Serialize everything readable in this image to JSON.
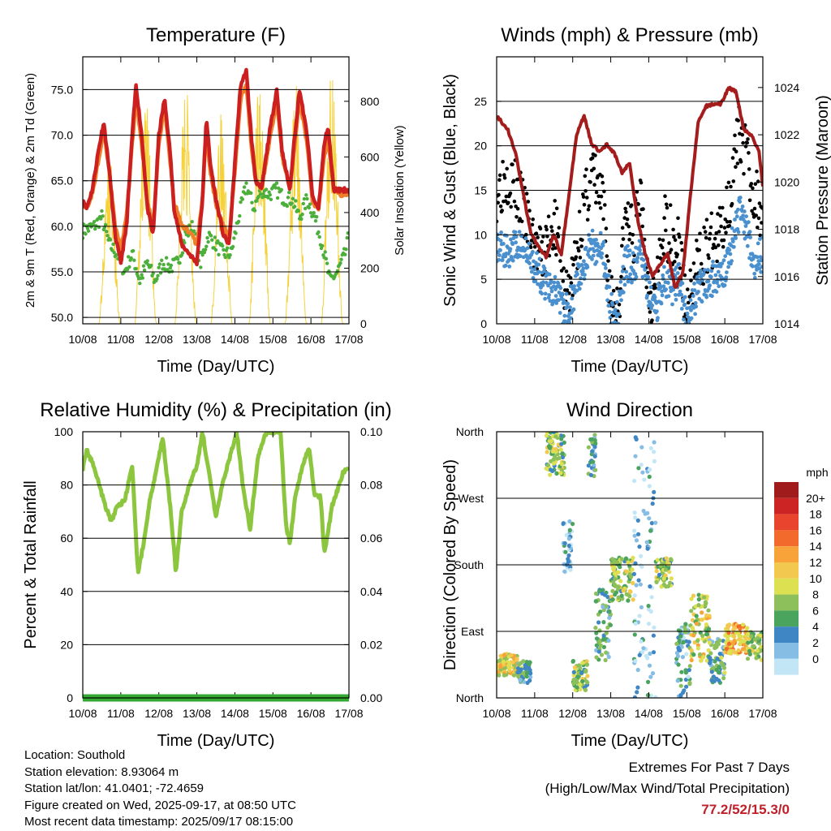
{
  "chart_data": [
    {
      "type": "line",
      "title": "Temperature (F)",
      "xlabel": "Time (Day/UTC)",
      "ylabel": "2m & 9m T (Red, Orange) & 2m Td (Green)",
      "ylabel_right": "Solar Insolation (Yellow)",
      "x_ticks": [
        "10/08",
        "11/08",
        "12/08",
        "13/08",
        "14/08",
        "15/08",
        "16/08",
        "17/08"
      ],
      "y_ticks": [
        "50.0",
        "55.0",
        "60.0",
        "65.0",
        "70.0",
        "75.0"
      ],
      "y_ticks_right": [
        "0",
        "200",
        "400",
        "600",
        "800"
      ],
      "ylim": [
        49.3,
        78.6
      ],
      "ylim_right": [
        0,
        960
      ],
      "grid": true,
      "series": [
        {
          "name": "2m T",
          "color": "#cc1f1f",
          "axis": "left",
          "x": [
            0,
            0.1,
            0.25,
            0.4,
            0.55,
            0.7,
            0.85,
            1.0,
            1.15,
            1.3,
            1.4,
            1.55,
            1.7,
            1.85,
            2.0,
            2.15,
            2.3,
            2.4,
            2.5,
            2.6,
            2.8,
            3.0,
            3.15,
            3.25,
            3.35,
            3.5,
            3.7,
            3.85,
            4.0,
            4.15,
            4.3,
            4.45,
            4.55,
            4.7,
            4.9,
            5.1,
            5.25,
            5.45,
            5.55,
            5.7,
            5.9,
            6.05,
            6.2,
            6.35,
            6.45,
            6.6,
            6.8,
            7.0
          ],
          "y": [
            63,
            62,
            64,
            68,
            71.5,
            66,
            59,
            56,
            60,
            70,
            75.5,
            70,
            62,
            59,
            70,
            74,
            68,
            62,
            60,
            58,
            57,
            56,
            63,
            72,
            67,
            63,
            59,
            58,
            67,
            75.5,
            77,
            69,
            65,
            64,
            70,
            75,
            68,
            64,
            69,
            75,
            70,
            63,
            62,
            69,
            71,
            64,
            64,
            64
          ]
        },
        {
          "name": "9m T",
          "color": "#f07f2a",
          "axis": "left",
          "x": [
            0,
            0.1,
            0.25,
            0.4,
            0.55,
            0.7,
            0.85,
            1.0,
            1.15,
            1.3,
            1.4,
            1.55,
            1.7,
            1.85,
            2.0,
            2.15,
            2.3,
            2.4,
            2.5,
            2.6,
            2.8,
            3.0,
            3.15,
            3.25,
            3.35,
            3.5,
            3.7,
            3.85,
            4.0,
            4.15,
            4.3,
            4.45,
            4.55,
            4.7,
            4.9,
            5.1,
            5.25,
            5.45,
            5.55,
            5.7,
            5.9,
            6.05,
            6.2,
            6.35,
            6.45,
            6.6,
            6.8,
            7.0
          ],
          "y": [
            62.5,
            62,
            63.5,
            67,
            70.5,
            66,
            60,
            57.5,
            61,
            69,
            74,
            69,
            62.5,
            60,
            69,
            73,
            67,
            62.5,
            61.5,
            60,
            59.5,
            58,
            63,
            70.5,
            66,
            62.5,
            60,
            59,
            66,
            74,
            75.5,
            68,
            65,
            64,
            69,
            74,
            67.5,
            64,
            68,
            74,
            69,
            62.5,
            62,
            67.5,
            69.5,
            64,
            63.5,
            63.5
          ]
        },
        {
          "name": "2m Td",
          "color": "#4caf3b",
          "axis": "left",
          "x": [
            0,
            0.3,
            0.5,
            0.7,
            0.9,
            1.1,
            1.3,
            1.5,
            1.7,
            1.9,
            2.1,
            2.3,
            2.5,
            2.7,
            2.9,
            3.1,
            3.3,
            3.5,
            3.7,
            3.9,
            4.1,
            4.3,
            4.5,
            4.7,
            4.9,
            5.1,
            5.3,
            5.5,
            5.7,
            5.9,
            6.1,
            6.3,
            6.5,
            6.7,
            6.9,
            7.0
          ],
          "y": [
            59.5,
            60,
            61,
            58,
            57,
            55,
            57,
            54,
            56,
            54,
            56,
            55.5,
            56,
            59,
            60,
            56,
            59,
            58,
            57,
            57,
            61,
            64.5,
            62,
            64,
            63.5,
            64,
            63,
            63,
            61,
            63,
            61,
            58,
            54,
            55,
            57,
            59
          ]
        },
        {
          "name": "Solar Insolation",
          "color": "#f5d23c",
          "axis": "right",
          "peaks_day": [
            0.7,
            1.65,
            2.7,
            3.65,
            4.65,
            5.6,
            6.55
          ],
          "peaks_wm2": [
            640,
            850,
            880,
            780,
            900,
            880,
            950
          ]
        }
      ]
    },
    {
      "type": "scatter",
      "title": "Winds (mph) & Pressure (mb)",
      "xlabel": "Time (Day/UTC)",
      "ylabel": "Sonic Wind & Gust (Blue, Black)",
      "ylabel_right": "Station Pressure (Maroon)",
      "x_ticks": [
        "10/08",
        "11/08",
        "12/08",
        "13/08",
        "14/08",
        "15/08",
        "16/08",
        "17/08"
      ],
      "y_ticks": [
        "0",
        "5",
        "10",
        "15",
        "20",
        "25"
      ],
      "y_ticks_right": [
        "1014",
        "1016",
        "1018",
        "1020",
        "1022",
        "1024"
      ],
      "ylim": [
        0,
        30
      ],
      "ylim_right": [
        1014,
        1025.3
      ],
      "grid": true,
      "series": [
        {
          "name": "Sonic Wind",
          "color": "#4a90cf",
          "axis": "left",
          "x": [
            0,
            0.3,
            0.6,
            0.9,
            1.2,
            1.5,
            1.8,
            2.0,
            2.2,
            2.5,
            2.8,
            3.0,
            3.2,
            3.4,
            3.6,
            3.8,
            4.0,
            4.2,
            4.4,
            4.6,
            4.8,
            5.0,
            5.3,
            5.6,
            5.8,
            6.0,
            6.2,
            6.4,
            6.6,
            6.8,
            7.0
          ],
          "y": [
            9,
            8,
            9,
            7,
            5,
            4,
            1,
            3,
            6,
            9,
            8,
            2,
            1,
            7,
            6,
            8,
            3,
            2,
            5,
            4,
            5,
            0.5,
            4,
            5,
            5,
            6,
            9,
            13,
            10,
            7,
            8
          ]
        },
        {
          "name": "Gust",
          "color": "#000000",
          "axis": "left",
          "x": [
            0,
            0.3,
            0.6,
            0.9,
            1.2,
            1.5,
            1.8,
            2.0,
            2.2,
            2.5,
            2.8,
            3.0,
            3.2,
            3.4,
            3.6,
            3.8,
            4.0,
            4.2,
            4.4,
            4.6,
            4.8,
            5.0,
            5.3,
            5.6,
            5.8,
            6.0,
            6.2,
            6.4,
            6.6,
            6.8,
            7.0
          ],
          "y": [
            15,
            17,
            14,
            10,
            7,
            12,
            3,
            5,
            11,
            17,
            13,
            3,
            2,
            12,
            10,
            15,
            4,
            3,
            11,
            10,
            9,
            1,
            7,
            9,
            9,
            12,
            16,
            22,
            18,
            14,
            13
          ]
        },
        {
          "name": "Station Pressure",
          "color": "#a51c1c",
          "axis": "right",
          "x": [
            0,
            0.3,
            0.5,
            0.7,
            0.9,
            1.1,
            1.3,
            1.5,
            1.7,
            1.9,
            2.1,
            2.3,
            2.5,
            2.7,
            2.9,
            3.1,
            3.3,
            3.5,
            3.7,
            3.9,
            4.1,
            4.3,
            4.5,
            4.7,
            4.9,
            5.1,
            5.3,
            5.5,
            5.7,
            5.9,
            6.1,
            6.3,
            6.5,
            6.7,
            6.9,
            7.0
          ],
          "y": [
            1022.8,
            1022.2,
            1021.2,
            1019.5,
            1017.8,
            1017.3,
            1016.8,
            1017.8,
            1016.9,
            1019.4,
            1022,
            1022.8,
            1021.6,
            1021.3,
            1021.6,
            1021.2,
            1020.4,
            1020.8,
            1018.5,
            1017,
            1016,
            1016.5,
            1017,
            1015.5,
            1016.2,
            1019.5,
            1022.5,
            1023.2,
            1023.3,
            1023.3,
            1024,
            1023.8,
            1022.2,
            1022,
            1021.3,
            1019.8
          ]
        }
      ]
    },
    {
      "type": "line",
      "title": "Relative Humidity (%) & Precipitation (in)",
      "xlabel": "Time (Day/UTC)",
      "ylabel": "Percent & Total Rainfall",
      "x_ticks": [
        "10/08",
        "11/08",
        "12/08",
        "13/08",
        "14/08",
        "15/08",
        "16/08",
        "17/08"
      ],
      "y_ticks": [
        "0",
        "20",
        "40",
        "60",
        "80",
        "100"
      ],
      "y_ticks_right": [
        "0.00",
        "0.02",
        "0.04",
        "0.06",
        "0.08",
        "0.10"
      ],
      "ylim": [
        0,
        100
      ],
      "ylim_right": [
        0,
        0.1
      ],
      "grid": true,
      "series": [
        {
          "name": "Relative Humidity",
          "color": "#8cc63f",
          "axis": "left",
          "x": [
            0,
            0.1,
            0.3,
            0.55,
            0.75,
            0.9,
            1.1,
            1.3,
            1.45,
            1.6,
            1.75,
            1.9,
            2.1,
            2.3,
            2.45,
            2.6,
            2.8,
            3.0,
            3.15,
            3.3,
            3.5,
            3.7,
            3.9,
            4.05,
            4.2,
            4.4,
            4.6,
            4.8,
            4.95,
            5.05,
            5.2,
            5.35,
            5.45,
            5.6,
            5.8,
            5.95,
            6.1,
            6.25,
            6.35,
            6.45,
            6.55,
            6.7,
            6.85,
            7.0
          ],
          "y": [
            86,
            93,
            87,
            74,
            66,
            72,
            74,
            87,
            47,
            58,
            73,
            83,
            98,
            72,
            47,
            70,
            80,
            87,
            100,
            86,
            68,
            82,
            92,
            100,
            81,
            63,
            90,
            99,
            100,
            100,
            100,
            64,
            58,
            77,
            88,
            94,
            76,
            76,
            55,
            62,
            72,
            78,
            85,
            86
          ]
        },
        {
          "name": "Total Precipitation",
          "color": "#33a833",
          "axis": "right",
          "x": [
            0,
            7
          ],
          "y": [
            0,
            0
          ]
        }
      ]
    },
    {
      "type": "scatter",
      "title": "Wind Direction",
      "xlabel": "Time (Day/UTC)",
      "ylabel": "Direction (Colored By Speed)",
      "x_ticks": [
        "10/08",
        "11/08",
        "12/08",
        "13/08",
        "14/08",
        "15/08",
        "16/08",
        "17/08"
      ],
      "y_ticks": [
        "North",
        "East",
        "South",
        "West",
        "North"
      ],
      "ylim": [
        0,
        360
      ],
      "grid": true,
      "colorbar": {
        "title": "mph",
        "labels": [
          "20+",
          "18",
          "16",
          "14",
          "12",
          "10",
          "8",
          "6",
          "4",
          "2",
          "0"
        ],
        "colors": [
          "#a01c1c",
          "#cc2424",
          "#e8442e",
          "#f26a2c",
          "#f7a33a",
          "#f2c94e",
          "#dde050",
          "#8dc05a",
          "#4aa45e",
          "#3f86c4",
          "#86bde5",
          "#c2e6f6"
        ]
      },
      "clusters": [
        {
          "x0": 0,
          "x1": 0.55,
          "dir_lo": 30,
          "dir_hi": 60,
          "mph": 11
        },
        {
          "x0": 0.55,
          "x1": 0.9,
          "dir_lo": 20,
          "dir_hi": 50,
          "mph": 6
        },
        {
          "x0": 1.3,
          "x1": 1.8,
          "dir_lo": 300,
          "dir_hi": 360,
          "mph": 8
        },
        {
          "x0": 1.75,
          "x1": 2.0,
          "dir_lo": 170,
          "dir_hi": 240,
          "mph": 2
        },
        {
          "x0": 2.0,
          "x1": 2.4,
          "dir_lo": 10,
          "dir_hi": 50,
          "mph": 8
        },
        {
          "x0": 2.4,
          "x1": 2.6,
          "dir_lo": 300,
          "dir_hi": 360,
          "mph": 5
        },
        {
          "x0": 2.6,
          "x1": 3.0,
          "dir_lo": 50,
          "dir_hi": 150,
          "mph": 5
        },
        {
          "x0": 3.0,
          "x1": 3.6,
          "dir_lo": 130,
          "dir_hi": 190,
          "mph": 8
        },
        {
          "x0": 3.6,
          "x1": 4.2,
          "dir_lo": 0,
          "dir_hi": 360,
          "mph": 2
        },
        {
          "x0": 4.2,
          "x1": 4.6,
          "dir_lo": 150,
          "dir_hi": 190,
          "mph": 8
        },
        {
          "x0": 4.7,
          "x1": 5.1,
          "dir_lo": 0,
          "dir_hi": 100,
          "mph": 4
        },
        {
          "x0": 5.1,
          "x1": 5.6,
          "dir_lo": 50,
          "dir_hi": 140,
          "mph": 10
        },
        {
          "x0": 5.6,
          "x1": 6.0,
          "dir_lo": 20,
          "dir_hi": 80,
          "mph": 6
        },
        {
          "x0": 6.0,
          "x1": 6.6,
          "dir_lo": 60,
          "dir_hi": 100,
          "mph": 13
        },
        {
          "x0": 6.6,
          "x1": 7.0,
          "dir_lo": 50,
          "dir_hi": 90,
          "mph": 9
        }
      ]
    }
  ],
  "info": {
    "location": "Location: Southold",
    "elevation": "Station elevation: 8.93064 m",
    "latlon": "Station lat/lon: 41.0401; -72.4659",
    "created": "Figure created on Wed, 2025-09-17, at 08:50 UTC",
    "recent": "Most recent data timestamp: 2025/09/17 08:15:00"
  },
  "extremes": {
    "title": "Extremes For Past 7 Days",
    "subtitle": "(High/Low/Max Wind/Total Precipitation)",
    "values": "77.2/52/15.3/0"
  }
}
